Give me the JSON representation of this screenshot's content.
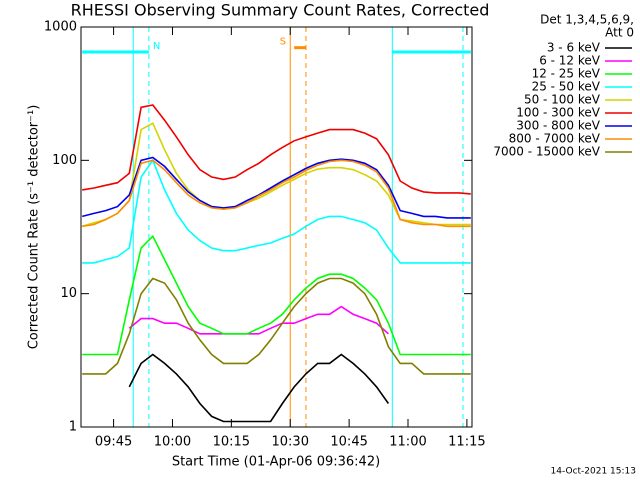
{
  "chart_data": {
    "type": "line",
    "title": "RHESSI Observing Summary Count Rates, Corrected",
    "xlabel": "Start Time (01-Apr-06 09:36:42)",
    "ylabel": "Corrected Count Rate (s⁻¹ detector⁻¹)",
    "legend_title": [
      "Det 1,3,4,5,6,9,",
      "Att 0"
    ],
    "footer": "14-Oct-2021 15:13",
    "log_y": true,
    "xlim": [
      "09:36:42",
      "11:16:18"
    ],
    "xticks": [
      "09:45",
      "10:00",
      "10:15",
      "10:30",
      "10:45",
      "11:00",
      "11:15"
    ],
    "ylim": [
      1,
      1000
    ],
    "yticks": [
      1,
      10,
      100,
      1000
    ],
    "x": [
      "09:37",
      "09:40",
      "09:43",
      "09:46",
      "09:49",
      "09:52",
      "09:55",
      "09:58",
      "10:01",
      "10:04",
      "10:07",
      "10:10",
      "10:13",
      "10:16",
      "10:19",
      "10:22",
      "10:25",
      "10:28",
      "10:31",
      "10:34",
      "10:37",
      "10:40",
      "10:43",
      "10:46",
      "10:49",
      "10:52",
      "10:55",
      "10:58",
      "11:01",
      "11:04",
      "11:07",
      "11:10",
      "11:13",
      "11:16"
    ],
    "series": [
      {
        "name": "3 - 6 keV",
        "color": "#000000",
        "values": [
          null,
          null,
          null,
          null,
          2,
          3,
          3.5,
          3,
          2.5,
          2,
          1.5,
          1.2,
          1.1,
          1.1,
          1.1,
          1.1,
          1.1,
          1.5,
          2,
          2.5,
          3,
          3,
          3.5,
          3,
          2.5,
          2,
          1.5,
          null,
          null,
          null,
          null,
          null,
          null,
          null
        ]
      },
      {
        "name": "6 - 12 keV",
        "color": "#ff00ff",
        "values": [
          null,
          null,
          null,
          null,
          5.5,
          6.5,
          6.5,
          6,
          6,
          5.5,
          5,
          5,
          5,
          5,
          5,
          5,
          5.5,
          6,
          6,
          6.5,
          7,
          7,
          8,
          7,
          6.5,
          6,
          5,
          null,
          null,
          null,
          null,
          null,
          null,
          null
        ]
      },
      {
        "name": "12 - 25 keV",
        "color": "#00ff00",
        "values": [
          3.5,
          3.5,
          3.5,
          3.5,
          9,
          22,
          27,
          18,
          12,
          8,
          6,
          5.5,
          5,
          5,
          5,
          5.5,
          6,
          7,
          9,
          11,
          13,
          14,
          14,
          13,
          11,
          9,
          6,
          3.5,
          3.5,
          3.5,
          3.5,
          3.5,
          3.5,
          3.5
        ]
      },
      {
        "name": "25 - 50 keV",
        "color": "#00ffff",
        "values": [
          17,
          17,
          18,
          19,
          22,
          75,
          100,
          60,
          40,
          30,
          25,
          22,
          21,
          21,
          22,
          23,
          24,
          26,
          28,
          32,
          36,
          38,
          38,
          36,
          34,
          30,
          22,
          17,
          17,
          17,
          17,
          17,
          17,
          17
        ]
      },
      {
        "name": "50 - 100 keV",
        "color": "#d4d400",
        "values": [
          32,
          34,
          36,
          40,
          50,
          170,
          190,
          120,
          80,
          60,
          50,
          45,
          44,
          45,
          48,
          52,
          58,
          65,
          72,
          80,
          86,
          88,
          88,
          85,
          78,
          70,
          55,
          36,
          35,
          34,
          33,
          33,
          33,
          33
        ]
      },
      {
        "name": "100 - 300 keV",
        "color": "#ee0000",
        "values": [
          60,
          62,
          65,
          68,
          80,
          250,
          260,
          200,
          150,
          110,
          85,
          75,
          72,
          75,
          85,
          95,
          110,
          125,
          140,
          150,
          160,
          170,
          170,
          170,
          160,
          145,
          110,
          70,
          62,
          58,
          57,
          57,
          57,
          56
        ]
      },
      {
        "name": "300 - 800 keV",
        "color": "#0000ee",
        "values": [
          38,
          40,
          42,
          45,
          55,
          100,
          105,
          90,
          72,
          58,
          50,
          45,
          44,
          45,
          50,
          55,
          62,
          70,
          78,
          87,
          95,
          100,
          102,
          100,
          95,
          85,
          65,
          42,
          40,
          38,
          38,
          37,
          37,
          37
        ]
      },
      {
        "name": "800 - 7000 keV",
        "color": "#ff8c00",
        "values": [
          32,
          33,
          36,
          40,
          50,
          95,
          100,
          85,
          68,
          55,
          48,
          44,
          43,
          44,
          48,
          54,
          60,
          68,
          75,
          84,
          92,
          98,
          100,
          98,
          92,
          82,
          62,
          36,
          34,
          33,
          33,
          32,
          32,
          32
        ]
      },
      {
        "name": "7000 - 15000 keV",
        "color": "#808000",
        "values": [
          2.5,
          2.5,
          2.5,
          3,
          5,
          10,
          13,
          12,
          9,
          6,
          4.5,
          3.5,
          3,
          3,
          3,
          3.5,
          4.5,
          6,
          8,
          10,
          12,
          13,
          13,
          12,
          10,
          7,
          4,
          3,
          3,
          2.5,
          2.5,
          2.5,
          2.5,
          2.5
        ]
      }
    ],
    "flags": [
      {
        "label": "N",
        "start": "09:37",
        "end": "09:54",
        "level": 650,
        "color": "#00ffff"
      },
      {
        "start": "10:56",
        "end": "11:16",
        "level": 650,
        "color": "#00ffff"
      },
      {
        "label": "S",
        "start": "10:31",
        "end": "10:34",
        "level": 700,
        "color": "#ff8c00"
      }
    ],
    "vlines": [
      {
        "x": "09:50",
        "color": "#00ffff",
        "dashed": false
      },
      {
        "x": "09:54",
        "color": "#00ffff",
        "dashed": true
      },
      {
        "x": "10:56",
        "color": "#00ffff",
        "dashed": false
      },
      {
        "x": "11:14",
        "color": "#00ffff",
        "dashed": true
      },
      {
        "x": "10:30",
        "color": "#ff8c00",
        "dashed": false
      },
      {
        "x": "10:34",
        "color": "#ff8c00",
        "dashed": true
      }
    ]
  }
}
